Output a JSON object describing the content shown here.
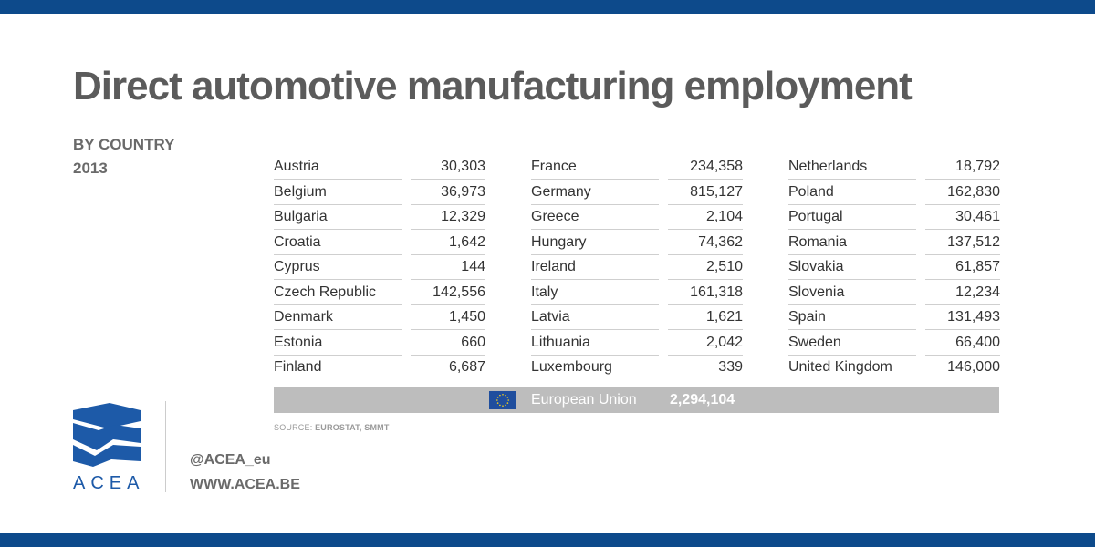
{
  "header": {
    "title": "Direct automotive manufacturing employment",
    "subtitle_line1": "BY COUNTRY",
    "subtitle_line2": "2013"
  },
  "chart_data": {
    "type": "table",
    "title": "Direct automotive manufacturing employment",
    "columns": [
      [
        {
          "country": "Austria",
          "value": "30,303"
        },
        {
          "country": "Belgium",
          "value": "36,973"
        },
        {
          "country": "Bulgaria",
          "value": "12,329"
        },
        {
          "country": "Croatia",
          "value": "1,642"
        },
        {
          "country": "Cyprus",
          "value": "144"
        },
        {
          "country": "Czech Republic",
          "value": "142,556"
        },
        {
          "country": "Denmark",
          "value": "1,450"
        },
        {
          "country": "Estonia",
          "value": "660"
        },
        {
          "country": "Finland",
          "value": "6,687"
        }
      ],
      [
        {
          "country": "France",
          "value": "234,358"
        },
        {
          "country": "Germany",
          "value": "815,127"
        },
        {
          "country": "Greece",
          "value": "2,104"
        },
        {
          "country": "Hungary",
          "value": "74,362"
        },
        {
          "country": "Ireland",
          "value": "2,510"
        },
        {
          "country": "Italy",
          "value": "161,318"
        },
        {
          "country": "Latvia",
          "value": "1,621"
        },
        {
          "country": "Lithuania",
          "value": "2,042"
        },
        {
          "country": "Luxembourg",
          "value": "339"
        }
      ],
      [
        {
          "country": "Netherlands",
          "value": "18,792"
        },
        {
          "country": "Poland",
          "value": "162,830"
        },
        {
          "country": "Portugal",
          "value": "30,461"
        },
        {
          "country": "Romania",
          "value": "137,512"
        },
        {
          "country": "Slovakia",
          "value": "61,857"
        },
        {
          "country": "Slovenia",
          "value": "12,234"
        },
        {
          "country": "Spain",
          "value": "131,493"
        },
        {
          "country": "Sweden",
          "value": "66,400"
        },
        {
          "country": "United Kingdom",
          "value": "146,000"
        }
      ]
    ],
    "total": {
      "label": "European Union",
      "value": "2,294,104"
    }
  },
  "source": {
    "prefix": "SOURCE: ",
    "text": "EUROSTAT, SMMT"
  },
  "footer": {
    "logo_text": "ACEA",
    "twitter": "@ACEA_eu",
    "website": "WWW.ACEA.BE"
  },
  "colors": {
    "brand_blue": "#0d4a8b",
    "eu_bar_gray": "#bdbdbd",
    "eu_flag_blue": "#1f4e9e",
    "eu_flag_stars": "#f7d117"
  }
}
